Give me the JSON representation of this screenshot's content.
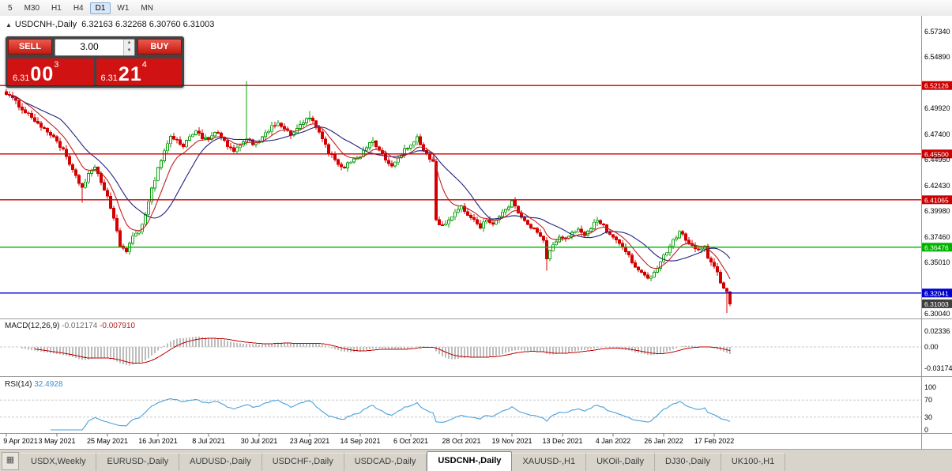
{
  "icons": {
    "panel_collapse": "▲",
    "spin_up": "▲",
    "spin_down": "▼",
    "tabs_grid": "▦"
  },
  "timeframe_toolbar": {
    "items": [
      "5",
      "M30",
      "H1",
      "H4",
      "D1",
      "W1",
      "MN"
    ],
    "active": "D1"
  },
  "chart_header": {
    "title": "USDCNH-,Daily",
    "ohlc": "6.32163 6.32268 6.30760 6.31003"
  },
  "trade_panel": {
    "sell_label": "SELL",
    "buy_label": "BUY",
    "volume": "3.00",
    "sell_price": {
      "prefix": "6.31",
      "big": "00",
      "sup": "3"
    },
    "buy_price": {
      "prefix": "6.31",
      "big": "21",
      "sup": "4"
    }
  },
  "colors": {
    "candle_up": "#0a9e0a",
    "candle_down": "#d40000",
    "ma_fast": "#c22222",
    "ma_slow": "#21217e",
    "macd_hist": "#bdbdbd",
    "macd_signal": "#c00000",
    "rsi_line": "#4aa0dc",
    "level_line": "#c8c8c8",
    "separator": "#9a9a9a",
    "axis_text": "#000000",
    "badge_current": "#3f3f3f"
  },
  "chart_data": {
    "type": "candlestick",
    "symbol": "USDCNH-",
    "period": "Daily",
    "bars_total": 230,
    "noise": 0.0035,
    "price_axis_range": [
      6.3004,
      6.5734
    ],
    "price_axis_labels": [
      "6.57340",
      "6.54890",
      "6.49920",
      "6.47400",
      "6.44950",
      "6.42430",
      "6.39980",
      "6.37460",
      "6.35010",
      "6.30040"
    ],
    "date_labels": [
      "9 Apr 2021",
      "3 May 2021",
      "25 May 2021",
      "16 Jun 2021",
      "8 Jul 2021",
      "30 Jul 2021",
      "23 Aug 2021",
      "14 Sep 2021",
      "6 Oct 2021",
      "28 Oct 2021",
      "19 Nov 2021",
      "13 Dec 2021",
      "4 Jan 2022",
      "26 Jan 2022",
      "17 Feb 2022"
    ],
    "hlines": [
      {
        "price": 6.52126,
        "label": "6.52126",
        "color": "#cc0000"
      },
      {
        "price": 6.455,
        "label": "6.45500",
        "color": "#cc0000"
      },
      {
        "price": 6.41065,
        "label": "6.41065",
        "color": "#cc0000"
      },
      {
        "price": 6.36476,
        "label": "6.36476",
        "color": "#00b200"
      },
      {
        "price": 6.32041,
        "label": "6.32041",
        "color": "#0000d0"
      }
    ],
    "current_price": {
      "value": 6.31003,
      "label": "6.31003"
    },
    "last_candle": {
      "open": 6.32163,
      "high": 6.32268,
      "low": 6.3076,
      "close": 6.31003
    },
    "price_path_anchors": [
      [
        0,
        6.514
      ],
      [
        3,
        6.505
      ],
      [
        6,
        6.496
      ],
      [
        9,
        6.488
      ],
      [
        12,
        6.478
      ],
      [
        15,
        6.472
      ],
      [
        18,
        6.458
      ],
      [
        21,
        6.438
      ],
      [
        24,
        6.422
      ],
      [
        26,
        6.436
      ],
      [
        28,
        6.441
      ],
      [
        30,
        6.428
      ],
      [
        32,
        6.414
      ],
      [
        34,
        6.392
      ],
      [
        36,
        6.366
      ],
      [
        38,
        6.362
      ],
      [
        40,
        6.374
      ],
      [
        42,
        6.379
      ],
      [
        44,
        6.398
      ],
      [
        46,
        6.421
      ],
      [
        48,
        6.441
      ],
      [
        50,
        6.458
      ],
      [
        52,
        6.472
      ],
      [
        54,
        6.468
      ],
      [
        56,
        6.462
      ],
      [
        58,
        6.472
      ],
      [
        60,
        6.478
      ],
      [
        62,
        6.471
      ],
      [
        64,
        6.468
      ],
      [
        66,
        6.476
      ],
      [
        68,
        6.471
      ],
      [
        70,
        6.463
      ],
      [
        72,
        6.457
      ],
      [
        74,
        6.462
      ],
      [
        76,
        6.471
      ],
      [
        78,
        6.465
      ],
      [
        80,
        6.468
      ],
      [
        82,
        6.474
      ],
      [
        84,
        6.481
      ],
      [
        86,
        6.486
      ],
      [
        88,
        6.479
      ],
      [
        90,
        6.473
      ],
      [
        92,
        6.479
      ],
      [
        94,
        6.486
      ],
      [
        96,
        6.49
      ],
      [
        98,
        6.481
      ],
      [
        100,
        6.469
      ],
      [
        102,
        6.457
      ],
      [
        104,
        6.449
      ],
      [
        106,
        6.441
      ],
      [
        108,
        6.445
      ],
      [
        110,
        6.451
      ],
      [
        112,
        6.453
      ],
      [
        114,
        6.462
      ],
      [
        116,
        6.468
      ],
      [
        118,
        6.459
      ],
      [
        120,
        6.449
      ],
      [
        122,
        6.443
      ],
      [
        124,
        6.451
      ],
      [
        126,
        6.459
      ],
      [
        128,
        6.463
      ],
      [
        130,
        6.47
      ],
      [
        132,
        6.459
      ],
      [
        134,
        6.451
      ],
      [
        135,
        6.447
      ],
      [
        136,
        6.391
      ],
      [
        138,
        6.385
      ],
      [
        140,
        6.392
      ],
      [
        142,
        6.398
      ],
      [
        144,
        6.403
      ],
      [
        146,
        6.397
      ],
      [
        148,
        6.391
      ],
      [
        150,
        6.385
      ],
      [
        152,
        6.392
      ],
      [
        154,
        6.387
      ],
      [
        156,
        6.394
      ],
      [
        158,
        6.402
      ],
      [
        160,
        6.408
      ],
      [
        162,
        6.399
      ],
      [
        164,
        6.391
      ],
      [
        166,
        6.385
      ],
      [
        168,
        6.379
      ],
      [
        170,
        6.371
      ],
      [
        171,
        6.353
      ],
      [
        173,
        6.368
      ],
      [
        175,
        6.374
      ],
      [
        177,
        6.372
      ],
      [
        179,
        6.378
      ],
      [
        181,
        6.383
      ],
      [
        183,
        6.377
      ],
      [
        185,
        6.384
      ],
      [
        187,
        6.391
      ],
      [
        189,
        6.385
      ],
      [
        191,
        6.377
      ],
      [
        193,
        6.371
      ],
      [
        195,
        6.365
      ],
      [
        197,
        6.357
      ],
      [
        199,
        6.345
      ],
      [
        201,
        6.339
      ],
      [
        203,
        6.334
      ],
      [
        205,
        6.341
      ],
      [
        207,
        6.351
      ],
      [
        209,
        6.361
      ],
      [
        211,
        6.372
      ],
      [
        213,
        6.379
      ],
      [
        215,
        6.373
      ],
      [
        217,
        6.367
      ],
      [
        219,
        6.361
      ],
      [
        221,
        6.365
      ],
      [
        222,
        6.355
      ],
      [
        224,
        6.345
      ],
      [
        225,
        6.339
      ],
      [
        226,
        6.331
      ],
      [
        227,
        6.3255
      ],
      [
        228,
        6.32163
      ],
      [
        229,
        6.31003
      ]
    ],
    "spike_bars": [
      {
        "bar": 24,
        "low": 6.408
      },
      {
        "bar": 76,
        "high": 6.5255
      },
      {
        "bar": 96,
        "high": 6.4965
      },
      {
        "bar": 171,
        "low": 6.342
      },
      {
        "bar": 228,
        "low": 6.301
      }
    ],
    "ma_lines": [
      {
        "type": "ema",
        "period": 9,
        "color": "#c22222"
      },
      {
        "type": "sma",
        "period": 18,
        "color": "#21217e"
      }
    ],
    "indicators": {
      "macd": {
        "label": "MACD(12,26,9)",
        "value_main": "-0.012174",
        "value_signal": "-0.007910",
        "fast": 12,
        "slow": 26,
        "signal": 9,
        "axis_labels": [
          "0.02336",
          "0.00",
          "-0.03174"
        ]
      },
      "rsi": {
        "label": "RSI(14)",
        "value": "32.4928",
        "period": 14,
        "levels": [
          70,
          30
        ],
        "axis_labels": [
          "100",
          "70",
          "30",
          "0"
        ]
      }
    }
  },
  "bottom_tabs": {
    "tabs": [
      "USDX,Weekly",
      "EURUSD-,Daily",
      "AUDUSD-,Daily",
      "USDCHF-,Daily",
      "USDCAD-,Daily",
      "USDCNH-,Daily",
      "XAUUSD-,H1",
      "UKOil-,Daily",
      "DJ30-,Daily",
      "UK100-,H1"
    ],
    "active": "USDCNH-,Daily"
  }
}
